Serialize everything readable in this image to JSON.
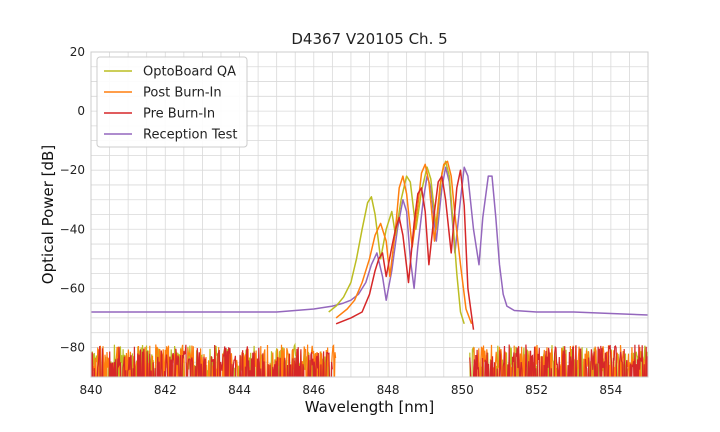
{
  "chart_data": {
    "type": "line",
    "title": "D4367 V20105 Ch. 5",
    "xlabel": "Wavelength [nm]",
    "ylabel": "Optical Power [dB]",
    "xlim": [
      840,
      855
    ],
    "ylim": [
      -90,
      20
    ],
    "xticks": [
      840,
      842,
      844,
      846,
      848,
      850,
      852,
      854
    ],
    "yticks": [
      -80,
      -60,
      -40,
      -20,
      0,
      20
    ],
    "xtick_labels": [
      "840",
      "842",
      "844",
      "846",
      "848",
      "850",
      "852",
      "854"
    ],
    "ytick_labels": [
      "−80",
      "−60",
      "−40",
      "−20",
      "0",
      "20"
    ],
    "minor_grid_step_x": 0.5,
    "minor_grid_step_y": 5,
    "grid": true,
    "legend_position": "top-left",
    "series": [
      {
        "name": "OptoBoard QA",
        "color": "#bcbd22",
        "noise_band": [
          [
            840,
            846.4
          ],
          [
            850.2,
            855
          ]
        ],
        "points": [
          [
            846.4,
            -68
          ],
          [
            846.6,
            -66
          ],
          [
            846.8,
            -63
          ],
          [
            847.0,
            -58
          ],
          [
            847.15,
            -50
          ],
          [
            847.3,
            -40
          ],
          [
            847.45,
            -31
          ],
          [
            847.55,
            -29
          ],
          [
            847.65,
            -35
          ],
          [
            847.8,
            -50
          ],
          [
            847.95,
            -40
          ],
          [
            848.1,
            -34
          ],
          [
            848.2,
            -42
          ],
          [
            848.35,
            -30
          ],
          [
            848.5,
            -22
          ],
          [
            848.6,
            -24
          ],
          [
            848.75,
            -40
          ],
          [
            848.9,
            -27
          ],
          [
            849.05,
            -19
          ],
          [
            849.15,
            -23
          ],
          [
            849.3,
            -40
          ],
          [
            849.45,
            -21
          ],
          [
            849.55,
            -17
          ],
          [
            849.65,
            -22
          ],
          [
            849.75,
            -38
          ],
          [
            849.85,
            -55
          ],
          [
            849.95,
            -68
          ],
          [
            850.05,
            -72
          ]
        ]
      },
      {
        "name": "Post Burn-In",
        "color": "#ff7f0e",
        "noise_band": [
          [
            840,
            846.6
          ],
          [
            850.3,
            855
          ]
        ],
        "points": [
          [
            846.6,
            -70
          ],
          [
            846.9,
            -67
          ],
          [
            847.1,
            -64
          ],
          [
            847.3,
            -58
          ],
          [
            847.5,
            -50
          ],
          [
            847.65,
            -42
          ],
          [
            847.8,
            -38
          ],
          [
            847.95,
            -44
          ],
          [
            848.05,
            -56
          ],
          [
            848.2,
            -40
          ],
          [
            848.3,
            -26
          ],
          [
            848.4,
            -22
          ],
          [
            848.5,
            -28
          ],
          [
            848.65,
            -46
          ],
          [
            848.8,
            -32
          ],
          [
            848.9,
            -21
          ],
          [
            849.0,
            -18
          ],
          [
            849.1,
            -24
          ],
          [
            849.25,
            -44
          ],
          [
            849.4,
            -25
          ],
          [
            849.5,
            -18
          ],
          [
            849.6,
            -17
          ],
          [
            849.7,
            -22
          ],
          [
            849.8,
            -35
          ],
          [
            849.95,
            -52
          ],
          [
            850.1,
            -67
          ],
          [
            850.25,
            -72
          ]
        ]
      },
      {
        "name": "Pre Burn-In",
        "color": "#d62728",
        "noise_band": [
          [
            840,
            846.5
          ],
          [
            850.2,
            855
          ]
        ],
        "points": [
          [
            846.6,
            -72
          ],
          [
            847.0,
            -70
          ],
          [
            847.3,
            -68
          ],
          [
            847.5,
            -62
          ],
          [
            847.65,
            -54
          ],
          [
            847.75,
            -50
          ],
          [
            847.85,
            -48
          ],
          [
            847.95,
            -56
          ],
          [
            848.1,
            -46
          ],
          [
            848.2,
            -40
          ],
          [
            848.3,
            -36
          ],
          [
            848.4,
            -42
          ],
          [
            848.55,
            -58
          ],
          [
            848.7,
            -38
          ],
          [
            848.8,
            -28
          ],
          [
            848.9,
            -26
          ],
          [
            849.0,
            -34
          ],
          [
            849.1,
            -52
          ],
          [
            849.25,
            -34
          ],
          [
            849.35,
            -24
          ],
          [
            849.45,
            -22
          ],
          [
            849.55,
            -30
          ],
          [
            849.7,
            -48
          ],
          [
            849.85,
            -26
          ],
          [
            849.95,
            -20
          ],
          [
            850.05,
            -32
          ],
          [
            850.15,
            -60
          ],
          [
            850.3,
            -74
          ]
        ]
      },
      {
        "name": "Reception Test",
        "color": "#9467bd",
        "noise_band": [],
        "points": [
          [
            840.0,
            -68
          ],
          [
            841.0,
            -68
          ],
          [
            842.0,
            -68
          ],
          [
            843.0,
            -68
          ],
          [
            844.0,
            -68
          ],
          [
            845.0,
            -68
          ],
          [
            845.5,
            -67.5
          ],
          [
            846.0,
            -67
          ],
          [
            846.5,
            -66
          ],
          [
            846.8,
            -65
          ],
          [
            847.0,
            -64
          ],
          [
            847.2,
            -62
          ],
          [
            847.4,
            -58
          ],
          [
            847.55,
            -52
          ],
          [
            847.7,
            -48
          ],
          [
            847.85,
            -56
          ],
          [
            847.95,
            -64
          ],
          [
            848.1,
            -54
          ],
          [
            848.25,
            -40
          ],
          [
            848.4,
            -30
          ],
          [
            848.5,
            -34
          ],
          [
            848.6,
            -50
          ],
          [
            848.7,
            -60
          ],
          [
            848.8,
            -46
          ],
          [
            848.95,
            -30
          ],
          [
            849.05,
            -22
          ],
          [
            849.15,
            -26
          ],
          [
            849.3,
            -44
          ],
          [
            849.45,
            -26
          ],
          [
            849.55,
            -19
          ],
          [
            849.65,
            -24
          ],
          [
            849.8,
            -48
          ],
          [
            849.95,
            -30
          ],
          [
            850.05,
            -19
          ],
          [
            850.15,
            -22
          ],
          [
            850.3,
            -40
          ],
          [
            850.45,
            -52
          ],
          [
            850.55,
            -36
          ],
          [
            850.7,
            -22
          ],
          [
            850.8,
            -22
          ],
          [
            850.9,
            -36
          ],
          [
            851.0,
            -52
          ],
          [
            851.1,
            -62
          ],
          [
            851.2,
            -66
          ],
          [
            851.4,
            -67.5
          ],
          [
            852.0,
            -68
          ],
          [
            853.0,
            -68
          ],
          [
            854.0,
            -68.5
          ],
          [
            855.0,
            -69
          ]
        ]
      }
    ]
  }
}
